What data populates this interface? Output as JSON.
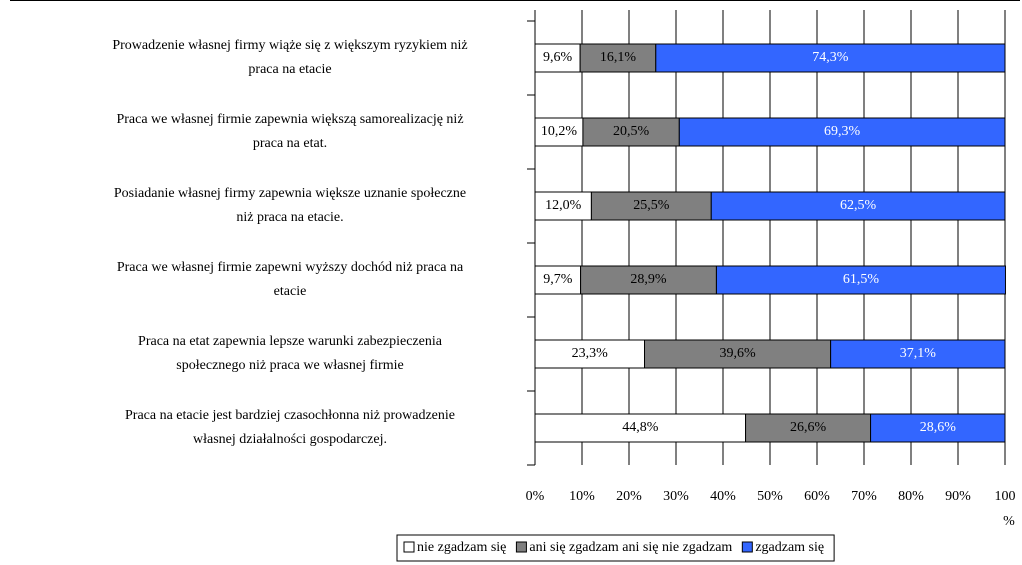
{
  "chart_data": {
    "type": "stacked_barh",
    "categories": [
      [
        "Prowadzenie własnej firmy wiąże się z większym ryzykiem niż",
        "praca na etacie"
      ],
      [
        "Praca we własnej firmie zapewnia większą samorealizację niż",
        "praca na etat."
      ],
      [
        "Posiadanie własnej firmy zapewnia większe uznanie społeczne",
        "niż praca na etacie."
      ],
      [
        "Praca we własnej firmie zapewni wyższy dochód niż praca na",
        "etacie"
      ],
      [
        "Praca na etat zapewnia lepsze warunki zabezpieczenia",
        "społecznego niż praca we własnej firmie"
      ],
      [
        "Praca na etacie jest bardziej czasochłonna niż prowadzenie",
        "własnej działalności gospodarczej."
      ]
    ],
    "series": [
      {
        "name": "nie zgadzam się",
        "color": "#ffffff",
        "label_color": "#000000",
        "values": [
          9.6,
          10.2,
          12.0,
          9.7,
          23.3,
          44.8
        ],
        "value_labels": [
          "9,6%",
          "10,2%",
          "12,0%",
          "9,7%",
          "23,3%",
          "44,8%"
        ]
      },
      {
        "name": "ani się zgadzam ani się nie zgadzam",
        "color": "#808080",
        "label_color": "#000000",
        "values": [
          16.1,
          20.5,
          25.5,
          28.9,
          39.6,
          26.6
        ],
        "value_labels": [
          "16,1%",
          "20,5%",
          "25,5%",
          "28,9%",
          "39,6%",
          "26,6%"
        ]
      },
      {
        "name": "zgadzam się",
        "color": "#3366ff",
        "label_color": "#ffffff",
        "values": [
          74.3,
          69.3,
          62.5,
          61.5,
          37.1,
          28.6
        ],
        "value_labels": [
          "74,3%",
          "69,3%",
          "62,5%",
          "61,5%",
          "37,1%",
          "28,6%"
        ]
      }
    ],
    "xlim": [
      0,
      100
    ],
    "xticks": [
      {
        "value": 0,
        "label": "0%"
      },
      {
        "value": 10,
        "label": "10%"
      },
      {
        "value": 20,
        "label": "20%"
      },
      {
        "value": 30,
        "label": "30%"
      },
      {
        "value": 40,
        "label": "40%"
      },
      {
        "value": 50,
        "label": "50%"
      },
      {
        "value": 60,
        "label": "60%"
      },
      {
        "value": 70,
        "label": "70%"
      },
      {
        "value": 80,
        "label": "80%"
      },
      {
        "value": 90,
        "label": "90%"
      },
      {
        "value": 100,
        "label": "100 %"
      }
    ],
    "grid": true,
    "legend": "bottom"
  }
}
